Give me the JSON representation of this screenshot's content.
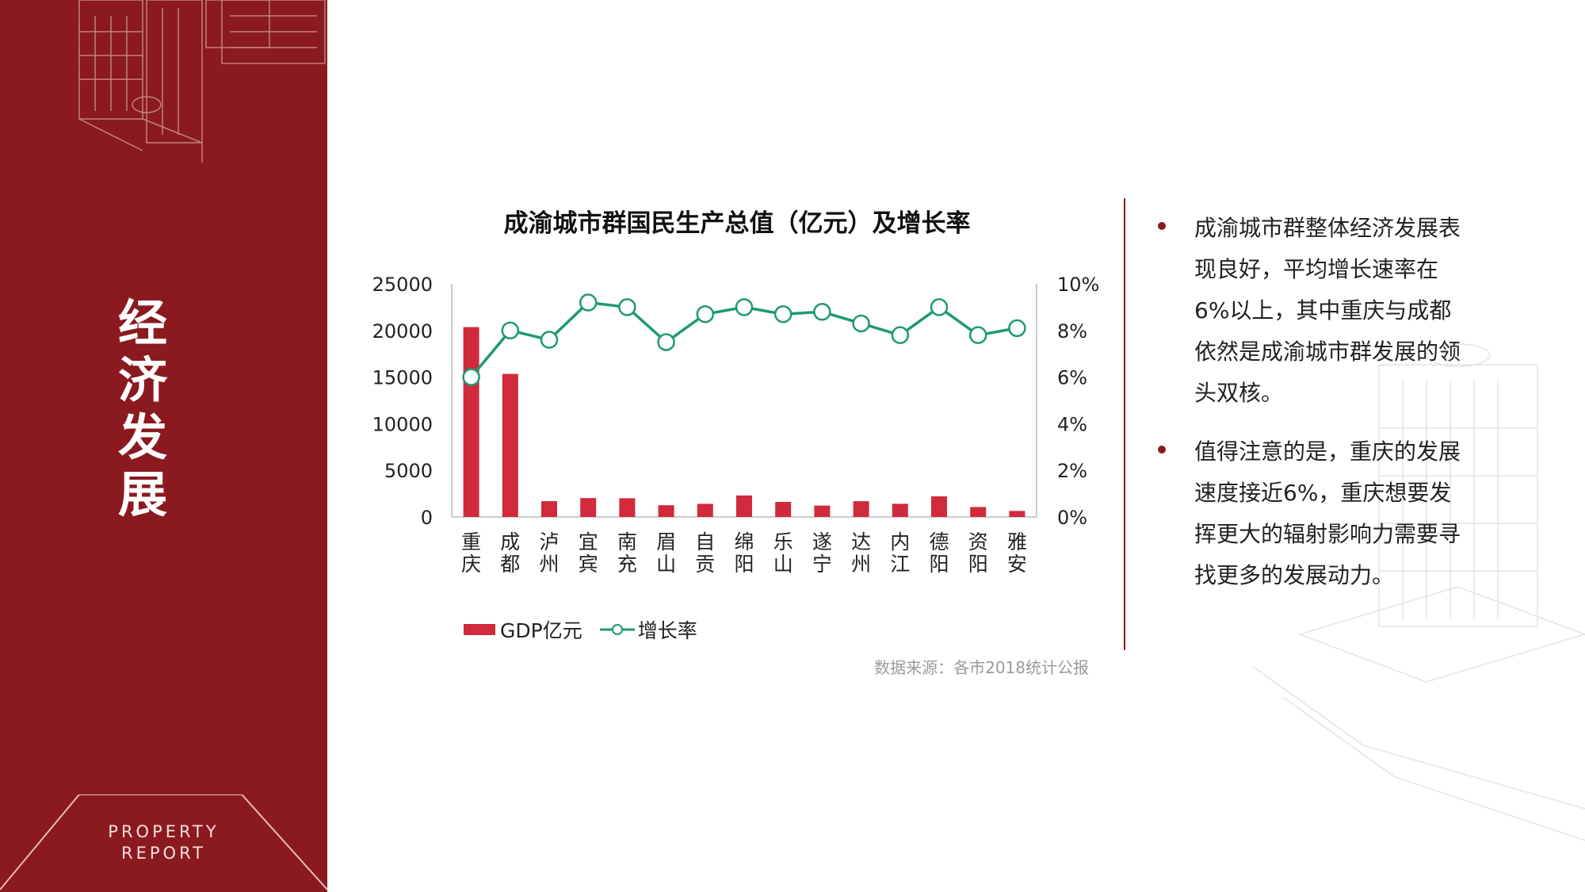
{
  "sidebar": {
    "title_chars": [
      "经",
      "济",
      "发",
      "展"
    ],
    "badge_line1": "PROPERTY",
    "badge_line2": "REPORT",
    "color": "#8a1a1f"
  },
  "chart": {
    "title": "成渝城市群国民生产总值（亿元）及增长率",
    "source": "数据来源：各市2018统计公报",
    "legend": {
      "bar": "GDP亿元",
      "line": "增长率"
    }
  },
  "chart_data": {
    "type": "bar+line",
    "title": "成渝城市群国民生产总值（亿元）及增长率",
    "categories": [
      "重庆",
      "成都",
      "泸州",
      "宜宾",
      "南充",
      "眉山",
      "自贡",
      "绵阳",
      "乐山",
      "遂宁",
      "达州",
      "内江",
      "德阳",
      "资阳",
      "雅安"
    ],
    "series": [
      {
        "name": "GDP亿元",
        "type": "bar",
        "axis": "left",
        "color": "#d02a3c",
        "values": [
          20363,
          15343,
          1695,
          2026,
          2006,
          1256,
          1406,
          2304,
          1615,
          1221,
          1691,
          1411,
          2214,
          1066,
          647
        ]
      },
      {
        "name": "增长率",
        "type": "line",
        "axis": "right",
        "unit": "%",
        "color": "#1e9a6e",
        "values": [
          6.0,
          8.0,
          7.6,
          9.2,
          9.0,
          7.5,
          8.7,
          9.0,
          8.7,
          8.8,
          8.3,
          7.8,
          9.0,
          7.8,
          8.1
        ]
      }
    ],
    "y_left": {
      "ylim": [
        0,
        25000
      ],
      "ticks": [
        "0",
        "5000",
        "10000",
        "15000",
        "20000",
        "25000"
      ]
    },
    "y_right": {
      "ylim": [
        0,
        10
      ],
      "ticks": [
        "0%",
        "2%",
        "4%",
        "6%",
        "8%",
        "10%"
      ]
    },
    "legend_position": "bottom-left",
    "grid": false
  },
  "bullets": [
    "成渝城市群整体经济发展表现良好，平均增长速率在6%以上，其中重庆与成都依然是成渝城市群发展的领头双核。",
    "值得注意的是，重庆的发展速度接近6%，重庆想要发挥更大的辐射影响力需要寻找更多的发展动力。"
  ]
}
